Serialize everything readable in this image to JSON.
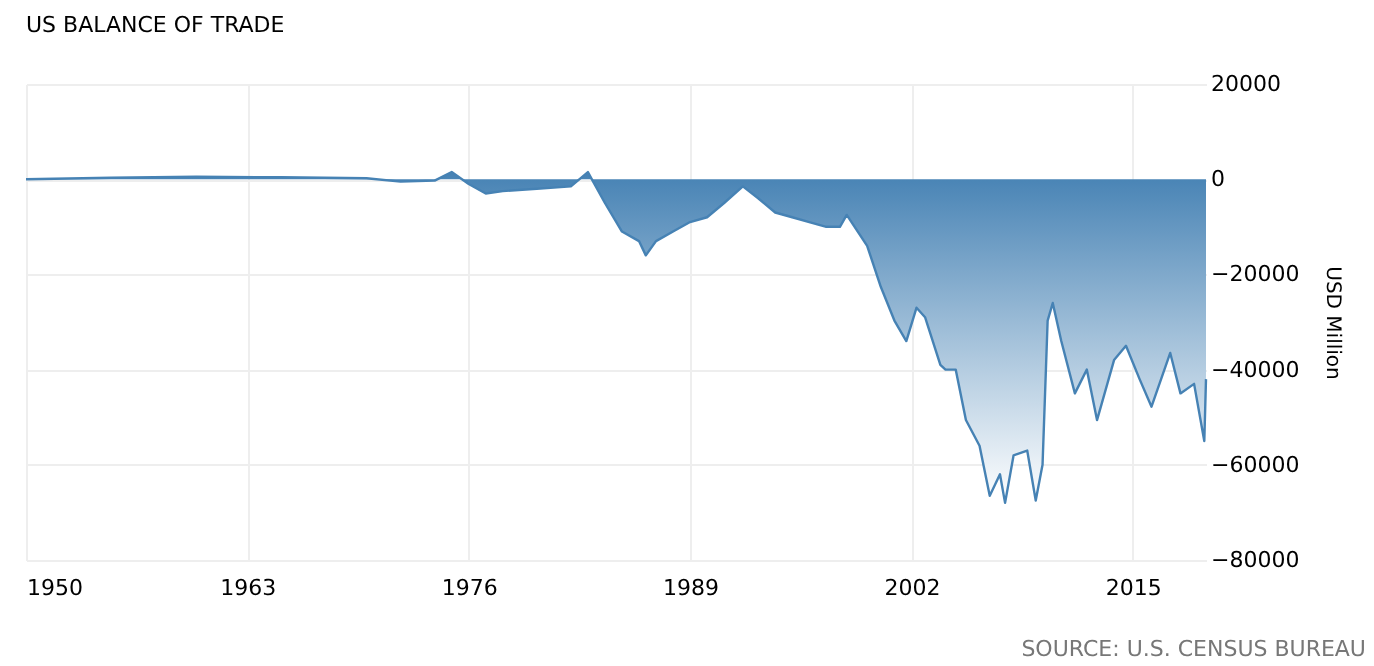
{
  "chart_data": {
    "type": "area",
    "title": "US BALANCE OF TRADE",
    "ylabel": "USD Million",
    "x": [
      1950,
      1955,
      1960,
      1965,
      1970,
      1972,
      1974,
      1975,
      1976,
      1977,
      1978,
      1980,
      1982,
      1983,
      1984,
      1985,
      1986,
      1986.4,
      1987,
      1988,
      1989,
      1990,
      1991,
      1992.1,
      1993,
      1994,
      1995,
      1996,
      1997,
      1997.8,
      1998.2,
      1999.4,
      2000.2,
      2001,
      2001.7,
      2002.3,
      2002.8,
      2003.7,
      2004,
      2004.6,
      2005.2,
      2006,
      2006.6,
      2007.2,
      2007.5,
      2008,
      2008.8,
      2009.3,
      2009.7,
      2010,
      2010.3,
      2010.8,
      2011.6,
      2012.3,
      2012.9,
      2013.9,
      2014.6,
      2015.4,
      2016.1,
      2017.2,
      2017.8,
      2018.6,
      2019.2,
      2019.3
    ],
    "series": [
      {
        "color": "#4682b4",
        "values": [
          0,
          300,
          500,
          400,
          200,
          -500,
          -300,
          1500,
          -1000,
          -3000,
          -2500,
          -2000,
          -1500,
          1500,
          -5000,
          -11000,
          -13000,
          -16000,
          -13000,
          -11000,
          -9000,
          -8000,
          -5000,
          -1500,
          -4000,
          -7000,
          -8000,
          -9000,
          -10000,
          -10000,
          -7500,
          -14000,
          -22600,
          -29700,
          -34000,
          -27000,
          -29000,
          -39000,
          -40000,
          -40000,
          -50600,
          -56000,
          -66500,
          -62000,
          -68000,
          -58000,
          -57000,
          -67500,
          -60000,
          -29700,
          -26000,
          -34000,
          -45000,
          -40000,
          -50600,
          -38000,
          -35000,
          -42000,
          -47800,
          -36500,
          -45000,
          -43000,
          -55000,
          -42000
        ]
      }
    ],
    "xlim": [
      1950,
      2019.3
    ],
    "xticks": [
      1950,
      1963,
      1976,
      1989,
      2002,
      2015
    ],
    "ylim": [
      -80000,
      20000
    ],
    "yticks": [
      20000,
      0,
      -20000,
      -40000,
      -60000,
      -80000
    ],
    "grid": true,
    "annotations": [
      "SOURCE: U.S. CENSUS BUREAU"
    ]
  }
}
